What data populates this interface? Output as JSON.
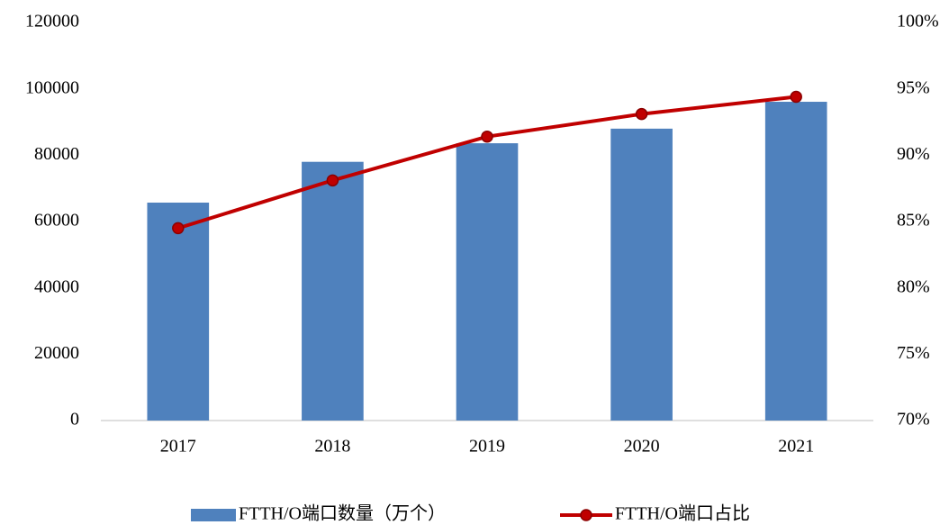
{
  "chart_data": {
    "type": "bar_line",
    "categories": [
      "2017",
      "2018",
      "2019",
      "2020",
      "2021"
    ],
    "series": [
      {
        "name": "FTTH/O端口数量（万个）",
        "type": "bar",
        "color": "#4f81bd",
        "values": [
          65700,
          78000,
          83600,
          88000,
          96100
        ]
      },
      {
        "name": "FTTH/O端口占比",
        "type": "line",
        "axis": "y2",
        "color": "#c00000",
        "values": [
          84.5,
          88.1,
          91.4,
          93.1,
          94.4
        ]
      }
    ],
    "ylim": [
      0,
      120000
    ],
    "yticks": [
      0,
      20000,
      40000,
      60000,
      80000,
      100000,
      120000
    ],
    "y2lim": [
      70,
      100
    ],
    "y2ticks": [
      {
        "value": 70,
        "label": "70%"
      },
      {
        "value": 75,
        "label": "75%"
      },
      {
        "value": 80,
        "label": "80%"
      },
      {
        "value": 85,
        "label": "85%"
      },
      {
        "value": 90,
        "label": "90%"
      },
      {
        "value": 95,
        "label": "95%"
      },
      {
        "value": 100,
        "label": "100%"
      }
    ],
    "grid": false,
    "legend": "bottom"
  }
}
